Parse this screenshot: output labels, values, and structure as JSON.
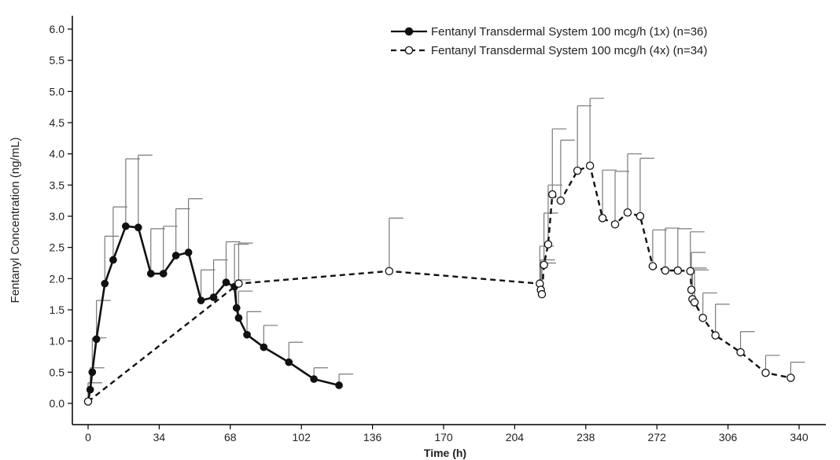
{
  "chart_data": {
    "type": "line",
    "title": "",
    "xlabel": "Time (h)",
    "ylabel": "Fentanyl Concentration (ng/mL)",
    "xlim": [
      -5,
      342
    ],
    "ylim": [
      0,
      6.2
    ],
    "x_ticks": [
      0,
      34,
      68,
      102,
      136,
      170,
      204,
      238,
      272,
      306,
      340
    ],
    "y_ticks": [
      0.0,
      0.5,
      1.0,
      1.5,
      2.0,
      2.5,
      3.0,
      3.5,
      4.0,
      4.5,
      5.0,
      5.5,
      6.0
    ],
    "grid": false,
    "legend_position": "top-right",
    "series": [
      {
        "name": "Fentanyl Transdermal System 100 mcg/h (1x) (n=36)",
        "line_style": "solid",
        "marker": "filled-circle",
        "x": [
          0,
          1,
          2,
          4,
          8,
          12,
          18,
          24,
          30,
          36,
          42,
          48,
          54,
          60,
          66,
          70,
          71,
          72,
          76,
          84,
          96,
          108,
          120
        ],
        "y": [
          0.03,
          0.22,
          0.5,
          1.03,
          1.92,
          2.3,
          2.84,
          2.82,
          2.08,
          2.08,
          2.37,
          2.42,
          1.65,
          1.7,
          1.94,
          1.87,
          1.53,
          1.37,
          1.1,
          0.9,
          0.66,
          0.39,
          0.29
        ],
        "err": [
          0.3,
          0.35,
          0.55,
          0.62,
          0.76,
          0.85,
          1.08,
          1.16,
          0.72,
          0.76,
          0.75,
          0.86,
          0.49,
          0.6,
          0.65,
          0.68,
          0.45,
          0.43,
          0.37,
          0.35,
          0.32,
          0.18,
          0.18
        ]
      },
      {
        "name": "Fentanyl Transdermal System 100 mcg/h (4x) (n=34)",
        "line_style": "dashed",
        "marker": "open-circle",
        "x": [
          0,
          72,
          144,
          216,
          216.5,
          217,
          218,
          220,
          222,
          226,
          234,
          240,
          246,
          252,
          258,
          264,
          270,
          276,
          282,
          288,
          288.5,
          289,
          290,
          294,
          300,
          312,
          324,
          336
        ],
        "y": [
          0.03,
          1.92,
          2.12,
          1.92,
          1.82,
          1.75,
          2.22,
          2.55,
          3.35,
          3.25,
          3.73,
          3.81,
          2.97,
          2.87,
          3.06,
          3.0,
          2.2,
          2.13,
          2.13,
          2.12,
          1.82,
          1.67,
          1.62,
          1.37,
          1.09,
          0.82,
          0.49,
          0.41
        ],
        "err": [
          0.3,
          0.65,
          0.85,
          0.6,
          0.48,
          0.5,
          0.83,
          0.95,
          1.05,
          0.97,
          1.04,
          1.08,
          0.77,
          0.85,
          0.94,
          0.93,
          0.58,
          0.68,
          0.67,
          0.63,
          0.6,
          0.5,
          0.52,
          0.4,
          0.5,
          0.33,
          0.28,
          0.25
        ]
      }
    ]
  }
}
